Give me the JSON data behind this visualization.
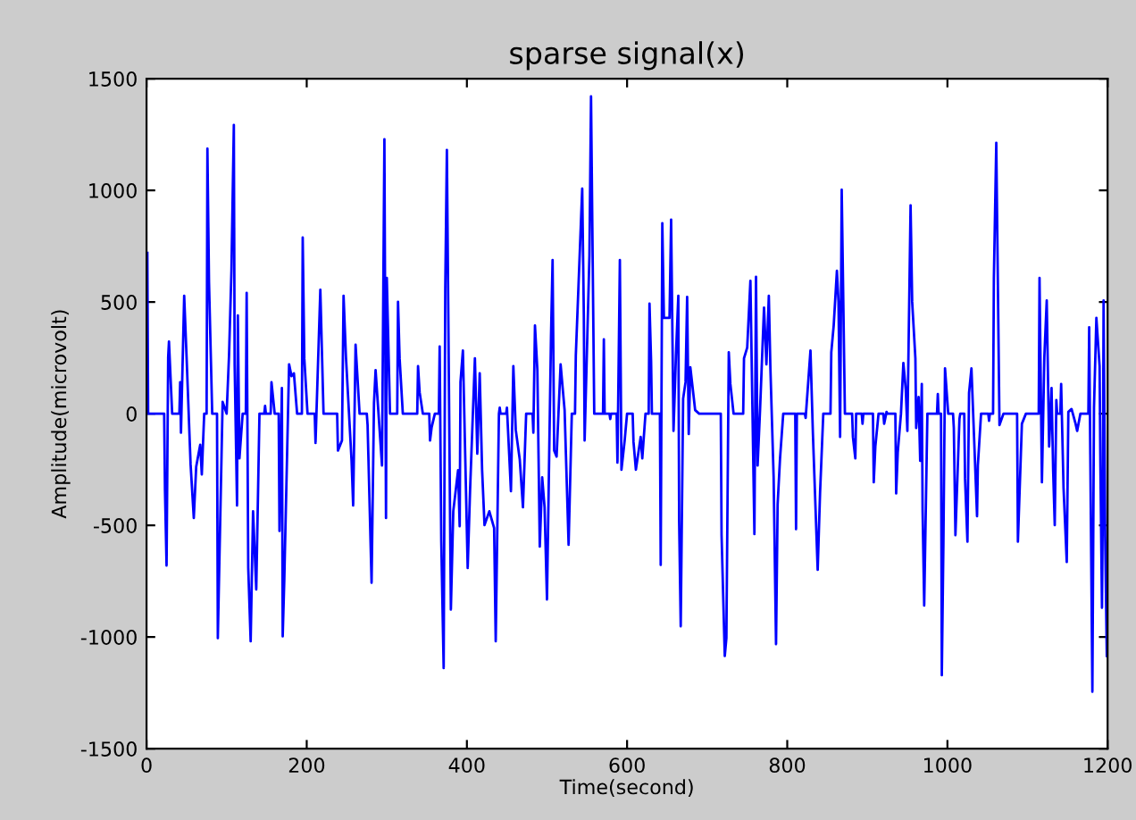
{
  "chart_data": {
    "type": "line",
    "title": "sparse signal(x)",
    "xlabel": "Time(second)",
    "ylabel": "Amplitude(microvolt)",
    "xlim": [
      0,
      1200
    ],
    "xticks": [
      0,
      200,
      400,
      600,
      800,
      1000,
      1200
    ],
    "ylim": [
      -1500,
      1500
    ],
    "yticks": [
      -1500,
      -1000,
      -500,
      0,
      500,
      1000,
      1500
    ],
    "grid": false,
    "series": [
      {
        "color": "#0000ff",
        "x": [
          1,
          2,
          22,
          23,
          25,
          27,
          28,
          32,
          41,
          42,
          43,
          47,
          50,
          55,
          59,
          62,
          67,
          69,
          72,
          75,
          76,
          78,
          82,
          88,
          89,
          95,
          100,
          103,
          106,
          109,
          110,
          113,
          114,
          116,
          120,
          124,
          125,
          127,
          130,
          133,
          137,
          141,
          147,
          148,
          149,
          155,
          156,
          160,
          165,
          166,
          169,
          170,
          172,
          178,
          181,
          184,
          188,
          194,
          195,
          197,
          201,
          210,
          211,
          217,
          221,
          238,
          239,
          244,
          246,
          249,
          256,
          258,
          261,
          266,
          275,
          276,
          281,
          284,
          286,
          288,
          294,
          297,
          299,
          300,
          304,
          313,
          314,
          316,
          320,
          338,
          339,
          341,
          345,
          353,
          354,
          356,
          360,
          365,
          366,
          368,
          371,
          373,
          375,
          380,
          383,
          389,
          391,
          392,
          395,
          401,
          404,
          410,
          413,
          416,
          419,
          422,
          428,
          434,
          436,
          440,
          441,
          442,
          449,
          450,
          455,
          458,
          461,
          466,
          470,
          474,
          482,
          483,
          485,
          488,
          491,
          494,
          497,
          500,
          505,
          507,
          509,
          512,
          517,
          522,
          527,
          531,
          535,
          536,
          544,
          546,
          547,
          553,
          555,
          559,
          570,
          571,
          572,
          578,
          579,
          580,
          587,
          588,
          591,
          593,
          597,
          600,
          607,
          608,
          611,
          617,
          619,
          623,
          627,
          628,
          630,
          631,
          641,
          642,
          644,
          646,
          653,
          655,
          658,
          661,
          664,
          665,
          667,
          670,
          673,
          675,
          677,
          679,
          685,
          690,
          717,
          718,
          722,
          724,
          727,
          729,
          733,
          745,
          746,
          750,
          754,
          759,
          761,
          763,
          766,
          771,
          774,
          777,
          779,
          783,
          786,
          788,
          791,
          795,
          810,
          811,
          812,
          822,
          823,
          829,
          832,
          838,
          841,
          845,
          854,
          855,
          858,
          862,
          864,
          866,
          868,
          872,
          881,
          882,
          885,
          886,
          893,
          894,
          895,
          907,
          908,
          910,
          914,
          920,
          921,
          924,
          925,
          935,
          936,
          938,
          942,
          945,
          948,
          950,
          954,
          956,
          960,
          961,
          964,
          966,
          968,
          969,
          971,
          975,
          987,
          988,
          989,
          992,
          993,
          995,
          997,
          1001,
          1007,
          1008,
          1010,
          1015,
          1016,
          1021,
          1022,
          1025,
          1027,
          1030,
          1037,
          1038,
          1042,
          1051,
          1052,
          1053,
          1057,
          1058,
          1061,
          1065,
          1070,
          1087,
          1088,
          1093,
          1098,
          1114,
          1115,
          1118,
          1121,
          1124,
          1127,
          1130,
          1132,
          1134,
          1136,
          1137,
          1141,
          1142,
          1145,
          1149,
          1151,
          1155,
          1160,
          1162,
          1166,
          1176,
          1177,
          1181,
          1183,
          1186,
          1190,
          1191,
          1193,
          1194,
          1195,
          1197,
          1199
        ],
        "values": [
          720,
          0,
          0,
          -340,
          -680,
          253,
          323,
          0,
          0,
          141,
          -85,
          528,
          253,
          -227,
          -467,
          -237,
          -139,
          -272,
          0,
          0,
          1187,
          589,
          0,
          0,
          -1005,
          53,
          0,
          261,
          640,
          1293,
          221,
          -411,
          440,
          -200,
          0,
          0,
          541,
          -691,
          -1019,
          -437,
          -787,
          0,
          0,
          35,
          0,
          0,
          141,
          0,
          0,
          -525,
          115,
          -997,
          -744,
          221,
          168,
          181,
          0,
          0,
          789,
          248,
          0,
          0,
          -131,
          555,
          0,
          0,
          -165,
          -120,
          528,
          253,
          -211,
          -411,
          309,
          0,
          0,
          -51,
          -757,
          48,
          195,
          88,
          -232,
          1229,
          -467,
          608,
          0,
          0,
          501,
          248,
          0,
          0,
          213,
          96,
          0,
          0,
          -120,
          -61,
          0,
          0,
          301,
          -571,
          -1139,
          563,
          1181,
          -877,
          -437,
          -253,
          -504,
          141,
          283,
          -691,
          -339,
          248,
          -179,
          181,
          -253,
          -499,
          -437,
          -512,
          -1019,
          0,
          27,
          0,
          0,
          27,
          -347,
          213,
          -72,
          -205,
          -419,
          0,
          0,
          -85,
          395,
          195,
          -595,
          -285,
          -419,
          -832,
          341,
          688,
          -165,
          -192,
          221,
          16,
          -587,
          0,
          0,
          261,
          1008,
          440,
          -120,
          709,
          1421,
          0,
          0,
          333,
          0,
          0,
          -24,
          0,
          0,
          -219,
          688,
          -251,
          -120,
          0,
          0,
          -125,
          -251,
          -104,
          -200,
          0,
          0,
          493,
          235,
          0,
          0,
          -677,
          853,
          429,
          429,
          869,
          -77,
          261,
          528,
          -477,
          -952,
          67,
          141,
          523,
          -91,
          208,
          16,
          0,
          0,
          -544,
          -1085,
          -1005,
          275,
          133,
          0,
          0,
          248,
          296,
          595,
          -539,
          613,
          -232,
          13,
          475,
          221,
          528,
          200,
          -285,
          -1032,
          -405,
          -200,
          0,
          0,
          -517,
          0,
          0,
          -19,
          283,
          -85,
          -699,
          -352,
          0,
          0,
          275,
          395,
          640,
          501,
          -104,
          1003,
          0,
          0,
          -104,
          -200,
          0,
          0,
          -45,
          0,
          0,
          -307,
          -147,
          0,
          0,
          -45,
          8,
          0,
          0,
          -357,
          -173,
          0,
          227,
          107,
          -77,
          933,
          501,
          248,
          -64,
          75,
          -211,
          133,
          -432,
          -859,
          0,
          0,
          88,
          0,
          0,
          -1171,
          -579,
          203,
          0,
          0,
          -64,
          -544,
          -24,
          0,
          0,
          -291,
          -573,
          93,
          203,
          -459,
          -232,
          0,
          0,
          -32,
          0,
          0,
          608,
          1213,
          -51,
          0,
          0,
          -573,
          -45,
          0,
          0,
          608,
          -307,
          253,
          507,
          -147,
          115,
          -253,
          -499,
          61,
          0,
          0,
          133,
          -333,
          -664,
          8,
          21,
          -45,
          -77,
          0,
          0,
          387,
          -1245,
          27,
          429,
          213,
          -232,
          -869,
          -432,
          507,
          -552,
          -1085
        ]
      }
    ]
  }
}
